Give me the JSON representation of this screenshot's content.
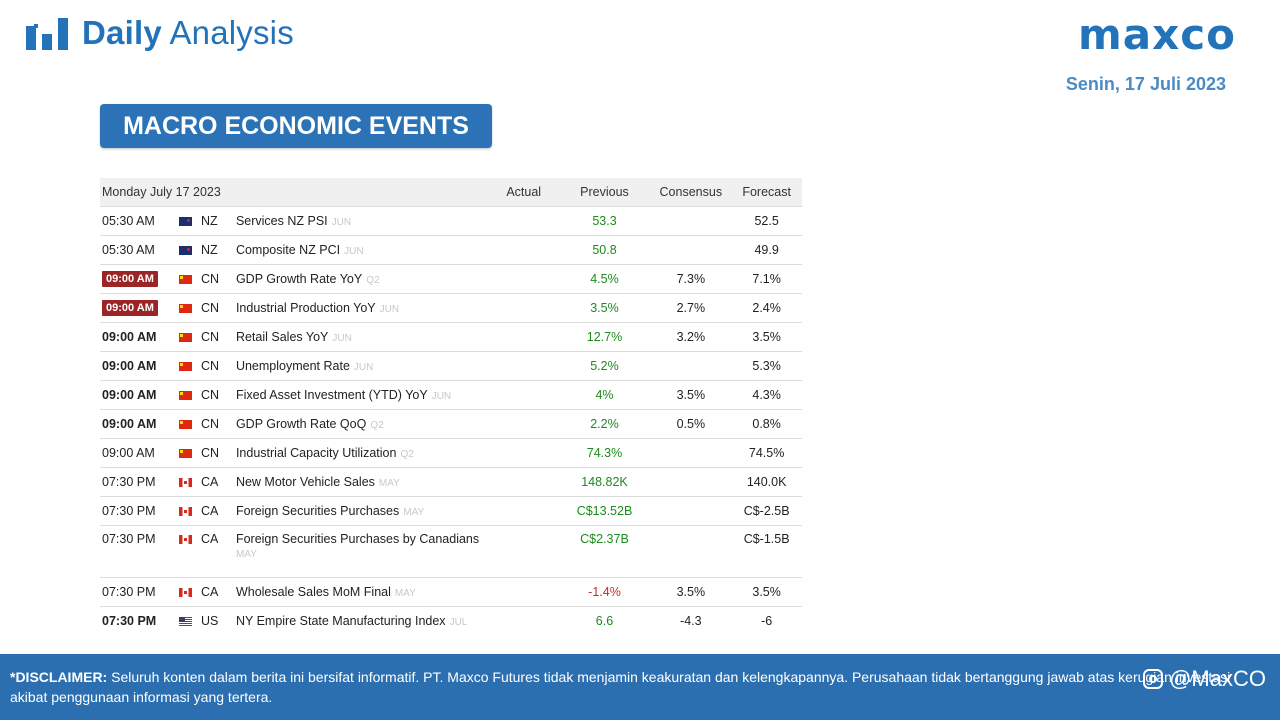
{
  "header": {
    "brand_bold": "Daily",
    "brand_light": "Analysis",
    "logo_text": "maxco",
    "date": "Senin, 17 Juli 2023",
    "icon": "bar-chart-icon"
  },
  "section": {
    "title": "MACRO ECONOMIC EVENTS"
  },
  "calendar": {
    "date_header": "Monday July 17 2023",
    "columns": {
      "actual": "Actual",
      "previous": "Previous",
      "consensus": "Consensus",
      "forecast": "Forecast"
    },
    "rows": [
      {
        "time": "05:30 AM",
        "style": "normal",
        "flag": "nz",
        "country": "NZ",
        "event": "Services NZ PSI",
        "ref": "JUN",
        "actual": "",
        "previous": "53.3",
        "prev_color": "green",
        "consensus": "",
        "forecast": "52.5"
      },
      {
        "time": "05:30 AM",
        "style": "normal",
        "flag": "nz",
        "country": "NZ",
        "event": "Composite NZ PCI",
        "ref": "JUN",
        "actual": "",
        "previous": "50.8",
        "prev_color": "green",
        "consensus": "",
        "forecast": "49.9"
      },
      {
        "time": "09:00 AM",
        "style": "badge",
        "flag": "cn",
        "country": "CN",
        "event": "GDP Growth Rate YoY",
        "ref": "Q2",
        "actual": "",
        "previous": "4.5%",
        "prev_color": "green",
        "consensus": "7.3%",
        "forecast": "7.1%"
      },
      {
        "time": "09:00 AM",
        "style": "badge",
        "flag": "cn",
        "country": "CN",
        "event": "Industrial Production YoY",
        "ref": "JUN",
        "actual": "",
        "previous": "3.5%",
        "prev_color": "green",
        "consensus": "2.7%",
        "forecast": "2.4%"
      },
      {
        "time": "09:00 AM",
        "style": "bold",
        "flag": "cn",
        "country": "CN",
        "event": "Retail Sales YoY",
        "ref": "JUN",
        "actual": "",
        "previous": "12.7%",
        "prev_color": "green",
        "consensus": "3.2%",
        "forecast": "3.5%"
      },
      {
        "time": "09:00 AM",
        "style": "bold",
        "flag": "cn",
        "country": "CN",
        "event": "Unemployment Rate",
        "ref": "JUN",
        "actual": "",
        "previous": "5.2%",
        "prev_color": "green",
        "consensus": "",
        "forecast": "5.3%"
      },
      {
        "time": "09:00 AM",
        "style": "bold",
        "flag": "cn",
        "country": "CN",
        "event": "Fixed Asset Investment (YTD) YoY",
        "ref": "JUN",
        "actual": "",
        "previous": "4%",
        "prev_color": "green",
        "consensus": "3.5%",
        "forecast": "4.3%"
      },
      {
        "time": "09:00 AM",
        "style": "bold",
        "flag": "cn",
        "country": "CN",
        "event": "GDP Growth Rate QoQ",
        "ref": "Q2",
        "actual": "",
        "previous": "2.2%",
        "prev_color": "green",
        "consensus": "0.5%",
        "forecast": "0.8%"
      },
      {
        "time": "09:00 AM",
        "style": "normal",
        "flag": "cn",
        "country": "CN",
        "event": "Industrial Capacity Utilization",
        "ref": "Q2",
        "actual": "",
        "previous": "74.3%",
        "prev_color": "green",
        "consensus": "",
        "forecast": "74.5%"
      },
      {
        "time": "07:30 PM",
        "style": "normal",
        "flag": "ca",
        "country": "CA",
        "event": "New Motor Vehicle Sales",
        "ref": "MAY",
        "actual": "",
        "previous": "148.82K",
        "prev_color": "green",
        "consensus": "",
        "forecast": "140.0K"
      },
      {
        "time": "07:30 PM",
        "style": "normal",
        "flag": "ca",
        "country": "CA",
        "event": "Foreign Securities Purchases",
        "ref": "MAY",
        "actual": "",
        "previous": "C$13.52B",
        "prev_color": "green",
        "consensus": "",
        "forecast": "C$-2.5B"
      },
      {
        "time": "07:30 PM",
        "style": "normal",
        "flag": "ca",
        "country": "CA",
        "event": "Foreign Securities Purchases by Canadians",
        "ref": "MAY",
        "actual": "",
        "previous": "C$2.37B",
        "prev_color": "green",
        "consensus": "",
        "forecast": "C$-1.5B",
        "tall": true
      },
      {
        "time": "07:30 PM",
        "style": "normal",
        "flag": "ca",
        "country": "CA",
        "event": "Wholesale Sales MoM Final",
        "ref": "MAY",
        "actual": "",
        "previous": "-1.4%",
        "prev_color": "red",
        "consensus": "3.5%",
        "forecast": "3.5%"
      },
      {
        "time": "07:30 PM",
        "style": "bold",
        "flag": "us",
        "country": "US",
        "event": "NY Empire State Manufacturing Index",
        "ref": "JUL",
        "actual": "",
        "previous": "6.6",
        "prev_color": "green",
        "consensus": "-4.3",
        "forecast": "-6"
      }
    ]
  },
  "footer": {
    "disclaimer_label": "*DISCLAIMER:",
    "disclaimer_text": " Seluruh konten dalam berita ini bersifat informatif. PT. Maxco Futures tidak menjamin keakuratan dan kelengkapannya. Perusahaan tidak bertanggung jawab atas kerugian investasi akibat penggunaan informasi yang tertera.",
    "social_handle": "@MaxCO",
    "social_icons": [
      "facebook-icon",
      "instagram-icon"
    ]
  },
  "colors": {
    "brand_blue": "#2273b9",
    "badge_red": "#9b2424",
    "positive": "#1e8a1e",
    "negative": "#c42b2b",
    "footer_bg": "#2b6fb1"
  }
}
